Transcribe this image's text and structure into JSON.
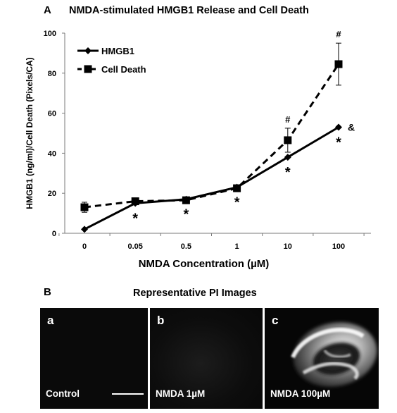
{
  "panel_a": {
    "letter": "A",
    "title": "NMDA-stimulated  HMGB1  Release and Cell Death"
  },
  "panel_b": {
    "letter": "B",
    "title": "Representative PI Images",
    "images": [
      {
        "sub": "a",
        "caption": "Control",
        "has_scale_bar": true,
        "signal": "none"
      },
      {
        "sub": "b",
        "caption": "NMDA 1µM",
        "has_scale_bar": false,
        "signal": "faint"
      },
      {
        "sub": "c",
        "caption": "NMDA 100µM",
        "has_scale_bar": false,
        "signal": "strong"
      }
    ]
  },
  "chart_data": {
    "type": "line",
    "categories": [
      "0",
      "0.05",
      "0.5",
      "1",
      "10",
      "100"
    ],
    "xlabel": "NMDA Concentration (µM)",
    "ylabel": "HMGB1 (ng/ml)/Cell Death (Pixels/CA)",
    "ylim": [
      0,
      100
    ],
    "yticks": [
      0,
      20,
      40,
      60,
      80,
      100
    ],
    "grid": false,
    "legend_position": "top-left",
    "series": [
      {
        "name": "HMGB1",
        "line_style": "solid",
        "marker": "diamond",
        "values": [
          2,
          15,
          17,
          23,
          38,
          53
        ],
        "errors": [
          0,
          0,
          1,
          1,
          0,
          0
        ],
        "annotations": [
          "",
          "*",
          "*",
          "*",
          "*",
          "* &"
        ]
      },
      {
        "name": "Cell Death",
        "line_style": "dashed",
        "marker": "square",
        "values": [
          13,
          16,
          16.5,
          22.5,
          46.5,
          84.5
        ],
        "errors": [
          2.5,
          1,
          1.5,
          1.5,
          6,
          10.5
        ],
        "annotations": [
          "",
          "",
          "",
          "",
          "#",
          "#"
        ]
      }
    ]
  }
}
